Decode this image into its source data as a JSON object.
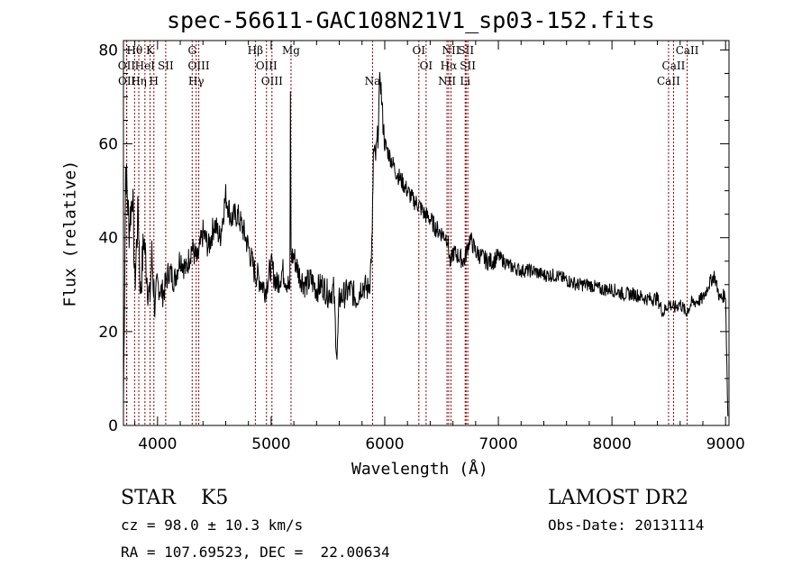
{
  "chart_data": {
    "type": "line",
    "title": "spec-56611-GAC108N21V1_sp03-152.fits",
    "xlabel": "Wavelength (Å)",
    "ylabel": "Flux (relative)",
    "xlim": [
      3700,
      9030
    ],
    "ylim": [
      0,
      82
    ],
    "xticks": [
      4000,
      5000,
      6000,
      7000,
      8000,
      9000
    ],
    "yticks": [
      0,
      20,
      40,
      60,
      80
    ],
    "series": [
      {
        "name": "flux",
        "color": "#000000",
        "x": [
          3700,
          3720,
          3750,
          3780,
          3800,
          3830,
          3850,
          3880,
          3900,
          3930,
          3950,
          3980,
          4000,
          4050,
          4100,
          4150,
          4200,
          4250,
          4300,
          4350,
          4400,
          4450,
          4500,
          4550,
          4600,
          4650,
          4700,
          4750,
          4800,
          4850,
          4900,
          4950,
          5000,
          5050,
          5100,
          5150,
          5165,
          5170,
          5175,
          5200,
          5250,
          5300,
          5350,
          5400,
          5450,
          5500,
          5550,
          5580,
          5600,
          5650,
          5700,
          5750,
          5800,
          5850,
          5870,
          5890,
          5900,
          5920,
          5940,
          5960,
          5980,
          6000,
          6050,
          6100,
          6150,
          6200,
          6250,
          6300,
          6350,
          6400,
          6450,
          6500,
          6550,
          6580,
          6600,
          6650,
          6700,
          6750,
          6800,
          6850,
          6900,
          6950,
          7000,
          7100,
          7200,
          7300,
          7400,
          7500,
          7600,
          7700,
          7800,
          7900,
          8000,
          8100,
          8200,
          8300,
          8400,
          8450,
          8500,
          8550,
          8600,
          8650,
          8700,
          8800,
          8850,
          8900,
          8950,
          9000,
          9020
        ],
        "y": [
          5,
          55,
          42,
          50,
          30,
          46,
          28,
          40,
          34,
          26,
          36,
          24,
          30,
          28,
          33,
          31,
          36,
          33,
          38,
          35,
          41,
          38,
          43,
          40,
          49,
          44,
          45,
          42,
          38,
          33,
          31,
          29,
          34,
          30,
          33,
          30,
          28,
          72,
          36,
          36,
          32,
          30,
          31,
          29,
          30,
          28,
          29,
          14,
          27,
          28,
          29,
          27,
          30,
          29,
          31,
          40,
          58,
          57,
          62,
          75,
          66,
          60,
          57,
          54,
          52,
          50,
          48,
          47,
          45,
          44,
          42,
          41,
          40,
          34,
          37,
          36,
          35,
          40,
          37,
          36,
          35,
          35,
          36,
          34,
          33,
          33,
          32,
          32,
          31,
          30,
          30,
          29,
          29,
          28,
          28,
          27,
          27,
          24,
          26,
          25,
          26,
          24,
          26,
          27,
          30,
          32,
          27,
          28,
          2
        ]
      }
    ],
    "lines": [
      {
        "w": 3798,
        "label": "Hθ",
        "row": 1
      },
      {
        "w": 3934,
        "label": "K",
        "row": 1
      },
      {
        "w": 4305,
        "label": "G",
        "row": 1
      },
      {
        "w": 4861,
        "label": "Hβ",
        "row": 1
      },
      {
        "w": 5175,
        "label": "Mg",
        "row": 1
      },
      {
        "w": 6300,
        "label": "OI",
        "row": 1
      },
      {
        "w": 6583,
        "label": "NII",
        "row": 1
      },
      {
        "w": 6716,
        "label": "SII",
        "row": 1
      },
      {
        "w": 8662,
        "label": "CaII",
        "row": 1
      },
      {
        "w": 3727,
        "label": "OII",
        "row": 2
      },
      {
        "w": 3889,
        "label": "HeI",
        "row": 2
      },
      {
        "w": 4072,
        "label": "SII",
        "row": 2
      },
      {
        "w": 4363,
        "label": "OIII",
        "row": 2
      },
      {
        "w": 4959,
        "label": "OIII",
        "row": 2
      },
      {
        "w": 6364,
        "label": "OI",
        "row": 2
      },
      {
        "w": 6563,
        "label": "Hα",
        "row": 2
      },
      {
        "w": 6731,
        "label": "SII",
        "row": 2
      },
      {
        "w": 8542,
        "label": "CaII",
        "row": 2
      },
      {
        "w": 3729,
        "label": "OII",
        "row": 3
      },
      {
        "w": 3835,
        "label": "Hη",
        "row": 3
      },
      {
        "w": 3968,
        "label": "H",
        "row": 3
      },
      {
        "w": 4340,
        "label": "Hγ",
        "row": 3
      },
      {
        "w": 5007,
        "label": "OIII",
        "row": 3
      },
      {
        "w": 5893,
        "label": "Na",
        "row": 3
      },
      {
        "w": 6548,
        "label": "NII",
        "row": 3
      },
      {
        "w": 6708,
        "label": "Li",
        "row": 3
      },
      {
        "w": 8498,
        "label": "CaII",
        "row": 3
      }
    ],
    "line_color": "#8b0000"
  },
  "info": {
    "class": "STAR    K5",
    "cz": "cz = 98.0 ± 10.3 km/s",
    "radec": "RA = 107.69523, DEC =  22.00634",
    "survey": "LAMOST DR2",
    "obsdate": "Obs-Date: 20131114"
  }
}
